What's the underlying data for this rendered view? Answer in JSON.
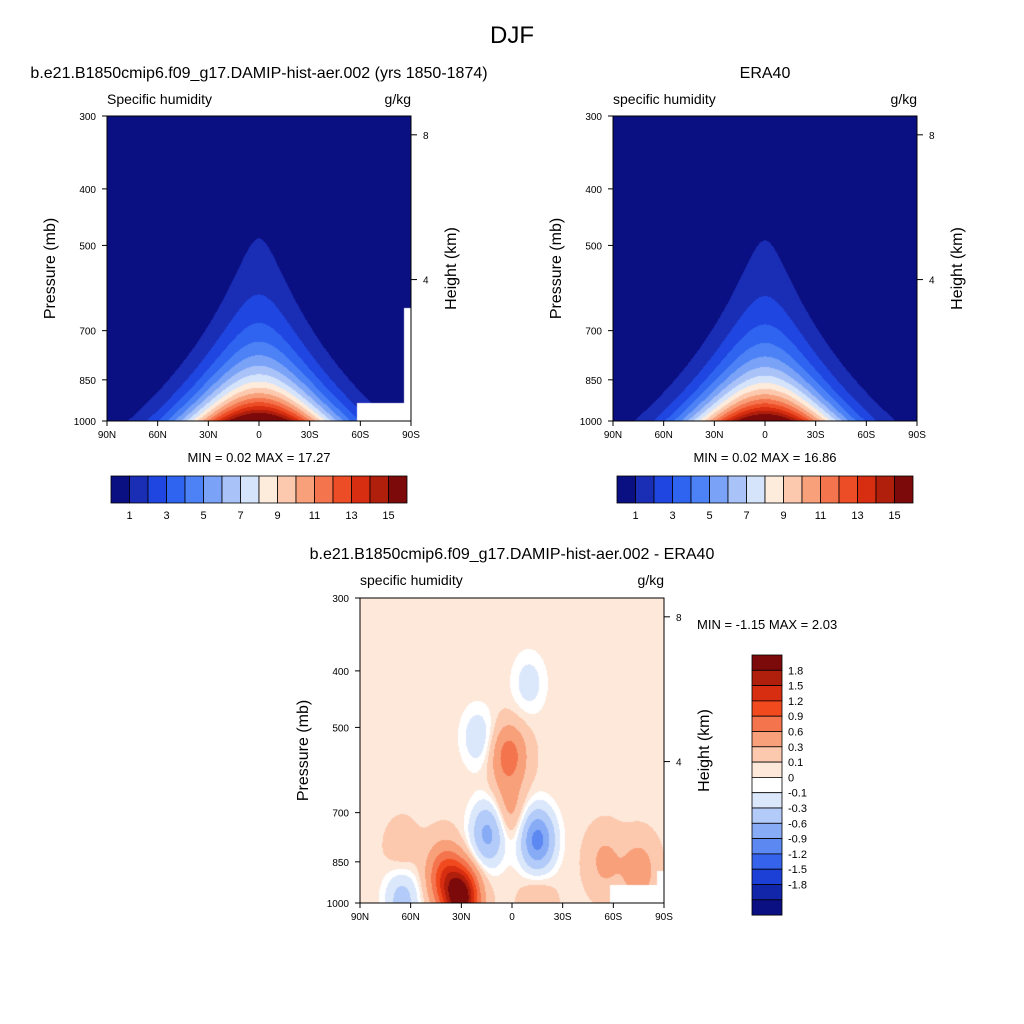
{
  "figure": {
    "title": "DJF"
  },
  "chart_data": [
    {
      "type": "heatmap",
      "title": "b.e21.B1850cmip6.f09_g17.DAMIP-hist-aer.002 (yrs 1850-1874)",
      "variable": "Specific humidity",
      "units": "g/kg",
      "ylabel": "Pressure (mb)",
      "ylabel_right": "Height (km)",
      "x_ticks": [
        "90N",
        "60N",
        "30N",
        "0",
        "30S",
        "60S",
        "90S"
      ],
      "x_values": [
        90,
        60,
        30,
        0,
        -30,
        -60,
        -90
      ],
      "xlim": [
        90,
        -90
      ],
      "y_ticks": [
        300,
        400,
        500,
        700,
        850,
        1000
      ],
      "ylim": [
        1000,
        300
      ],
      "y_scale": "log",
      "height_ticks_km": [
        8,
        4
      ],
      "stats": "MIN =   0.02  MAX =  17.27",
      "peak_value": 17.27,
      "min_value": 0.02,
      "colorbar": {
        "orientation": "horizontal",
        "levels": [
          1,
          2,
          3,
          4,
          5,
          6,
          7,
          8,
          9,
          10,
          11,
          12,
          13,
          14,
          15
        ],
        "tick_labels": [
          "1",
          "3",
          "5",
          "7",
          "9",
          "11",
          "13",
          "15"
        ],
        "colors": [
          "#0a0f82",
          "#1a2db5",
          "#1f46e0",
          "#2f64f0",
          "#4c82f5",
          "#7aa2f7",
          "#a9c3f9",
          "#d5e4fb",
          "#fdebdc",
          "#fcc9ae",
          "#f8a07a",
          "#f4744e",
          "#ec4d26",
          "#d72d10",
          "#b01e0c",
          "#7d0a0a"
        ]
      },
      "missing_region": "southern high latitudes near surface"
    },
    {
      "type": "heatmap",
      "title": "ERA40",
      "variable": "specific humidity",
      "units": "g/kg",
      "ylabel": "Pressure (mb)",
      "ylabel_right": "Height (km)",
      "x_ticks": [
        "90N",
        "60N",
        "30N",
        "0",
        "30S",
        "60S",
        "90S"
      ],
      "x_values": [
        90,
        60,
        30,
        0,
        -30,
        -60,
        -90
      ],
      "xlim": [
        90,
        -90
      ],
      "y_ticks": [
        300,
        400,
        500,
        700,
        850,
        1000
      ],
      "ylim": [
        1000,
        300
      ],
      "y_scale": "log",
      "height_ticks_km": [
        8,
        4
      ],
      "stats": "MIN =   0.02  MAX =  16.86",
      "peak_value": 16.86,
      "min_value": 0.02,
      "colorbar": {
        "orientation": "horizontal",
        "levels": [
          1,
          2,
          3,
          4,
          5,
          6,
          7,
          8,
          9,
          10,
          11,
          12,
          13,
          14,
          15
        ],
        "tick_labels": [
          "1",
          "3",
          "5",
          "7",
          "9",
          "11",
          "13",
          "15"
        ],
        "colors": [
          "#0a0f82",
          "#1a2db5",
          "#1f46e0",
          "#2f64f0",
          "#4c82f5",
          "#7aa2f7",
          "#a9c3f9",
          "#d5e4fb",
          "#fdebdc",
          "#fcc9ae",
          "#f8a07a",
          "#f4744e",
          "#ec4d26",
          "#d72d10",
          "#b01e0c",
          "#7d0a0a"
        ]
      }
    },
    {
      "type": "heatmap",
      "title": "b.e21.B1850cmip6.f09_g17.DAMIP-hist-aer.002 - ERA40",
      "variable": "specific humidity",
      "units": "g/kg",
      "ylabel": "Pressure (mb)",
      "ylabel_right": "Height (km)",
      "x_ticks": [
        "90N",
        "60N",
        "30N",
        "0",
        "30S",
        "60S",
        "90S"
      ],
      "x_values": [
        90,
        60,
        30,
        0,
        -30,
        -60,
        -90
      ],
      "xlim": [
        90,
        -90
      ],
      "y_ticks": [
        300,
        400,
        500,
        700,
        850,
        1000
      ],
      "ylim": [
        1000,
        300
      ],
      "y_scale": "log",
      "height_ticks_km": [
        8,
        4
      ],
      "stats": "MIN =  -1.15  MAX =   2.03",
      "min_value": -1.15,
      "max_value": 2.03,
      "colorbar": {
        "orientation": "vertical",
        "tick_labels": [
          "1.8",
          "1.5",
          "1.2",
          "0.9",
          "0.6",
          "0.3",
          "0.1",
          "0",
          "-0.1",
          "-0.3",
          "-0.6",
          "-0.9",
          "-1.2",
          "-1.5",
          "-1.8"
        ],
        "colors": [
          "#7d0a0a",
          "#b01e0c",
          "#d72d10",
          "#f04a1e",
          "#f4744e",
          "#f8a07a",
          "#fcc9ae",
          "#fde8da",
          "#ffffff",
          "#dbe7fb",
          "#b3cbf9",
          "#88abf6",
          "#5c88f2",
          "#3563ec",
          "#1c3fd6",
          "#1126a8",
          "#0a0f82"
        ]
      },
      "anomalies": [
        {
          "lat": 30,
          "p": 980,
          "value": 2.0
        },
        {
          "lat": 40,
          "p": 900,
          "value": 0.9
        },
        {
          "lat": 2,
          "p": 560,
          "value": 0.7
        },
        {
          "lat": 2,
          "p": 700,
          "value": 0.35
        },
        {
          "lat": -15,
          "p": 780,
          "value": -1.1
        },
        {
          "lat": 14,
          "p": 760,
          "value": -0.8
        },
        {
          "lat": -10,
          "p": 420,
          "value": -0.25
        },
        {
          "lat": 20,
          "p": 520,
          "value": -0.3
        },
        {
          "lat": -55,
          "p": 850,
          "value": 0.3
        },
        {
          "lat": -75,
          "p": 880,
          "value": 0.4
        },
        {
          "lat": 65,
          "p": 985,
          "value": -0.5
        },
        {
          "lat": -15,
          "p": 990,
          "value": 0.2
        },
        {
          "lat": 65,
          "p": 820,
          "value": 0.15
        }
      ]
    }
  ]
}
